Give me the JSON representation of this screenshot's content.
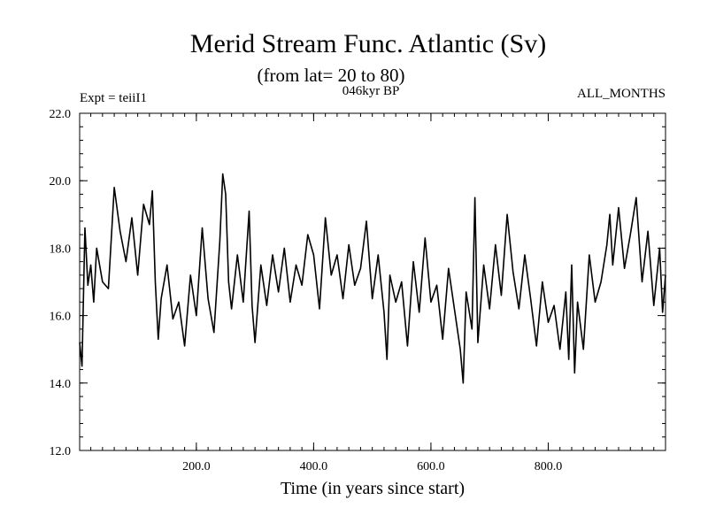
{
  "chart_data": {
    "type": "line",
    "title": "Merid Stream Func. Atlantic (Sv)",
    "subtitle": "(from lat= 20 to 80)",
    "annotations": {
      "left": "Expt = teiiI1",
      "center": "046kyr BP",
      "right": "ALL_MONTHS"
    },
    "xlabel": "Time (in years since start)",
    "ylabel": "",
    "xlim": [
      1,
      1000
    ],
    "ylim": [
      12,
      22
    ],
    "x_ticks": [
      {
        "value": 200,
        "label": "200.0"
      },
      {
        "value": 400,
        "label": "400.0"
      },
      {
        "value": 600,
        "label": "600.0"
      },
      {
        "value": 800,
        "label": "800.0"
      }
    ],
    "y_ticks": [
      {
        "value": 12,
        "label": "12.0"
      },
      {
        "value": 14,
        "label": "14.0"
      },
      {
        "value": 16,
        "label": "16.0"
      },
      {
        "value": 18,
        "label": "18.0"
      },
      {
        "value": 20,
        "label": "20.0"
      },
      {
        "value": 22,
        "label": "22.0"
      }
    ],
    "x_minor_step": 20,
    "y_minor_step": 0.4,
    "grid": false,
    "line_color": "#000000",
    "series": [
      {
        "x": [
          1,
          5,
          10,
          15,
          20,
          25,
          30,
          40,
          50,
          60,
          70,
          80,
          90,
          100,
          110,
          120,
          125,
          130,
          135,
          140,
          150,
          160,
          170,
          180,
          190,
          200,
          210,
          220,
          230,
          240,
          245,
          250,
          255,
          260,
          270,
          280,
          290,
          295,
          300,
          310,
          320,
          330,
          340,
          350,
          360,
          370,
          380,
          390,
          400,
          410,
          420,
          430,
          440,
          450,
          460,
          470,
          480,
          490,
          500,
          510,
          520,
          525,
          530,
          540,
          550,
          560,
          570,
          580,
          590,
          600,
          610,
          620,
          630,
          640,
          650,
          655,
          660,
          670,
          675,
          680,
          690,
          700,
          710,
          720,
          730,
          740,
          750,
          760,
          770,
          780,
          790,
          800,
          810,
          820,
          830,
          835,
          840,
          845,
          850,
          860,
          870,
          880,
          890,
          900,
          905,
          910,
          920,
          930,
          940,
          950,
          960,
          970,
          980,
          990,
          995,
          1000
        ],
        "values": [
          15.2,
          14.5,
          18.6,
          16.9,
          17.5,
          16.4,
          18.0,
          17.0,
          16.8,
          19.8,
          18.5,
          17.6,
          18.9,
          17.2,
          19.3,
          18.7,
          19.7,
          17.0,
          15.3,
          16.5,
          17.5,
          15.9,
          16.4,
          15.1,
          17.2,
          16.0,
          18.6,
          16.5,
          15.5,
          18.2,
          20.2,
          19.6,
          17.0,
          16.2,
          17.8,
          16.4,
          19.1,
          16.3,
          15.2,
          17.5,
          16.3,
          17.8,
          16.7,
          18.0,
          16.4,
          17.5,
          16.9,
          18.4,
          17.8,
          16.2,
          18.9,
          17.2,
          17.8,
          16.5,
          18.1,
          16.9,
          17.4,
          18.8,
          16.5,
          17.8,
          16.1,
          14.7,
          17.2,
          16.4,
          17.0,
          15.1,
          17.6,
          16.1,
          18.3,
          16.4,
          16.9,
          15.3,
          17.4,
          16.2,
          15.0,
          14.0,
          16.7,
          15.6,
          19.5,
          15.2,
          17.5,
          16.2,
          18.1,
          16.6,
          19.0,
          17.3,
          16.2,
          17.8,
          16.5,
          15.1,
          17.0,
          15.8,
          16.3,
          15.0,
          16.7,
          14.7,
          17.5,
          14.3,
          16.4,
          15.0,
          17.8,
          16.4,
          17.0,
          18.1,
          19.0,
          17.5,
          19.2,
          17.4,
          18.4,
          19.5,
          17.0,
          18.5,
          16.3,
          18.0,
          16.1,
          17.2
        ]
      }
    ]
  }
}
